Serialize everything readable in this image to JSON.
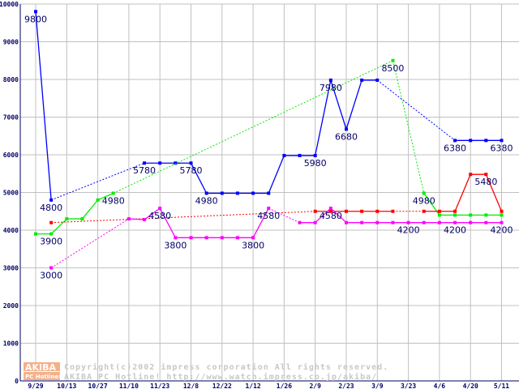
{
  "chart_data": {
    "type": "line",
    "title": "",
    "xlabel": "",
    "ylabel": "",
    "ylim": [
      0,
      10000
    ],
    "yticks": [
      0,
      1000,
      2000,
      3000,
      4000,
      5000,
      6000,
      7000,
      8000,
      9000,
      10000
    ],
    "x_unit": "week index from 9/29",
    "xlim": [
      -1,
      31
    ],
    "xticks": [
      {
        "week": 0,
        "label": "9/29"
      },
      {
        "week": 2,
        "label": "10/13"
      },
      {
        "week": 4,
        "label": "10/27"
      },
      {
        "week": 6,
        "label": "11/10"
      },
      {
        "week": 8,
        "label": "11/23"
      },
      {
        "week": 10,
        "label": "12/8"
      },
      {
        "week": 12,
        "label": "12/22"
      },
      {
        "week": 14,
        "label": "1/12"
      },
      {
        "week": 16,
        "label": "1/26"
      },
      {
        "week": 18,
        "label": "2/9"
      },
      {
        "week": 20,
        "label": "2/23"
      },
      {
        "week": 22,
        "label": "3/9"
      },
      {
        "week": 24,
        "label": "3/23"
      },
      {
        "week": 26,
        "label": "4/6"
      },
      {
        "week": 28,
        "label": "4/20"
      },
      {
        "week": 30,
        "label": "5/11"
      }
    ],
    "grid": true,
    "legend": "none",
    "series": [
      {
        "name": "blue",
        "color": "#0000ff",
        "points": [
          [
            0,
            9800
          ],
          [
            1,
            4800
          ],
          [
            7,
            5780
          ],
          [
            8,
            5780
          ],
          [
            9,
            5780
          ],
          [
            10,
            5780
          ],
          [
            11,
            4980
          ],
          [
            12,
            4980
          ],
          [
            13,
            4980
          ],
          [
            14,
            4980
          ],
          [
            15,
            4980
          ],
          [
            16,
            5980
          ],
          [
            17,
            5980
          ],
          [
            18,
            5980
          ],
          [
            19,
            7980
          ],
          [
            20,
            6680
          ],
          [
            21,
            7980
          ],
          [
            22,
            7980
          ],
          [
            27,
            6380
          ],
          [
            28,
            6380
          ],
          [
            29,
            6380
          ],
          [
            30,
            6380
          ]
        ]
      },
      {
        "name": "green",
        "color": "#00ee00",
        "points": [
          [
            0,
            3900
          ],
          [
            1,
            3900
          ],
          [
            2,
            4300
          ],
          [
            3,
            4300
          ],
          [
            4,
            4800
          ],
          [
            5,
            4980
          ],
          [
            23,
            8500
          ],
          [
            25,
            4980
          ],
          [
            26,
            4400
          ],
          [
            27,
            4400
          ],
          [
            28,
            4400
          ],
          [
            29,
            4400
          ],
          [
            30,
            4400
          ]
        ]
      },
      {
        "name": "red",
        "color": "#ff0000",
        "points": [
          [
            1,
            4200
          ],
          [
            18,
            4500
          ],
          [
            19,
            4500
          ],
          [
            20,
            4500
          ],
          [
            21,
            4500
          ],
          [
            22,
            4500
          ],
          [
            23,
            4500
          ],
          [
            25,
            4500
          ],
          [
            26,
            4500
          ],
          [
            27,
            4500
          ],
          [
            28,
            5480
          ],
          [
            29,
            5480
          ],
          [
            30,
            4500
          ]
        ]
      },
      {
        "name": "magenta",
        "color": "#ff00ff",
        "points": [
          [
            1,
            3000
          ],
          [
            6,
            4300
          ],
          [
            7,
            4280
          ],
          [
            8,
            4580
          ],
          [
            9,
            3800
          ],
          [
            10,
            3800
          ],
          [
            11,
            3800
          ],
          [
            12,
            3800
          ],
          [
            13,
            3800
          ],
          [
            14,
            3800
          ],
          [
            15,
            4580
          ],
          [
            17,
            4200
          ],
          [
            18,
            4200
          ],
          [
            19,
            4580
          ],
          [
            20,
            4200
          ],
          [
            21,
            4200
          ],
          [
            22,
            4200
          ],
          [
            23,
            4200
          ],
          [
            24,
            4200
          ],
          [
            25,
            4200
          ],
          [
            26,
            4200
          ],
          [
            27,
            4200
          ],
          [
            28,
            4200
          ],
          [
            29,
            4200
          ],
          [
            30,
            4200
          ]
        ]
      }
    ],
    "data_labels": [
      {
        "week": 0,
        "value": 9800,
        "text": "9800"
      },
      {
        "week": 1,
        "value": 4800,
        "text": "4800"
      },
      {
        "week": 1,
        "value": 3900,
        "text": "3900"
      },
      {
        "week": 1,
        "value": 3000,
        "text": "3000"
      },
      {
        "week": 5,
        "value": 4980,
        "text": "4980"
      },
      {
        "week": 7,
        "value": 5780,
        "text": "5780"
      },
      {
        "week": 10,
        "value": 5780,
        "text": "5780"
      },
      {
        "week": 8,
        "value": 4580,
        "text": "4580"
      },
      {
        "week": 9,
        "value": 3800,
        "text": "3800"
      },
      {
        "week": 11,
        "value": 4980,
        "text": "4980"
      },
      {
        "week": 14,
        "value": 3800,
        "text": "3800"
      },
      {
        "week": 15,
        "value": 4580,
        "text": "4580"
      },
      {
        "week": 18,
        "value": 5980,
        "text": "5980"
      },
      {
        "week": 19,
        "value": 7980,
        "text": "7980"
      },
      {
        "week": 19,
        "value": 4580,
        "text": "4580"
      },
      {
        "week": 20,
        "value": 6680,
        "text": "6680"
      },
      {
        "week": 23,
        "value": 8500,
        "text": "8500"
      },
      {
        "week": 24,
        "value": 4200,
        "text": "4200"
      },
      {
        "week": 25,
        "value": 4980,
        "text": "4980"
      },
      {
        "week": 27,
        "value": 6380,
        "text": "6380"
      },
      {
        "week": 27,
        "value": 4200,
        "text": "4200"
      },
      {
        "week": 29,
        "value": 5480,
        "text": "5480"
      },
      {
        "week": 30,
        "value": 6380,
        "text": "6380"
      },
      {
        "week": 30,
        "value": 4200,
        "text": "4200"
      }
    ]
  },
  "watermark": {
    "logo_top": "AKIBA",
    "logo_bottom": "PC Hotline!",
    "line1": "Copyright(c)2002 impress corporation All rights reserved.",
    "line2": "AKIBA PC Hotline!  http://www.watch.impress.co.jp/akiba/"
  }
}
